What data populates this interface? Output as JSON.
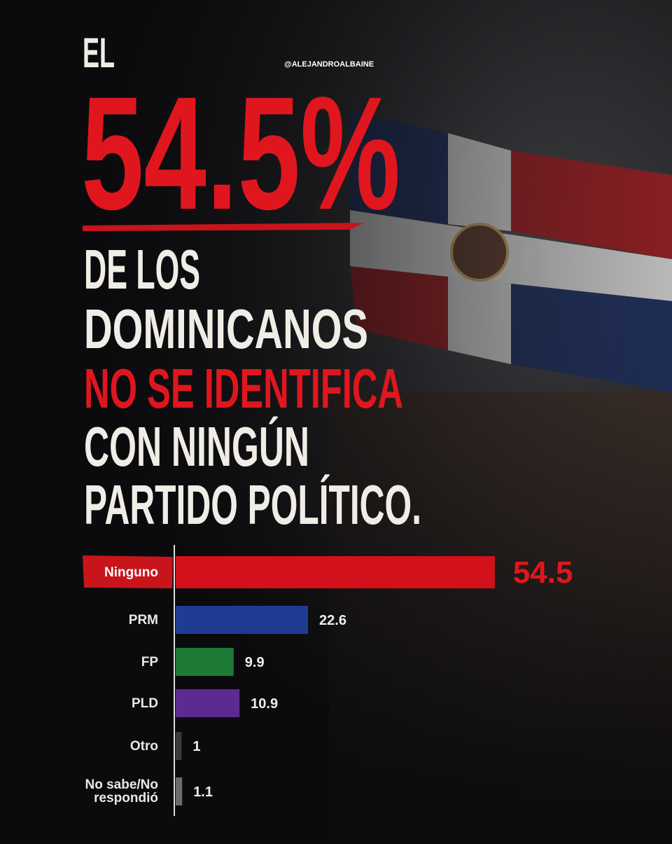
{
  "chart_data": {
    "type": "bar",
    "handle": "@ALEJANDROALBAINE",
    "headline": [
      "EL",
      "54.5%",
      "DE LOS",
      "DOMINICANOS",
      "NO SE IDENTIFICA",
      "CON NINGÚN",
      "PARTIDO POLÍTICO."
    ],
    "categories": [
      "Ninguno",
      "PRM",
      "FP",
      "PLD",
      "Otro",
      "No sabe/No respondió"
    ],
    "values": [
      54.5,
      22.6,
      9.9,
      10.9,
      1,
      1.1
    ],
    "colors": [
      "#d3111b",
      "#1f3c93",
      "#1d7a35",
      "#5b2a92",
      "#3a3a3a",
      "#6b6b6b"
    ],
    "xlim": [
      0,
      55
    ]
  }
}
